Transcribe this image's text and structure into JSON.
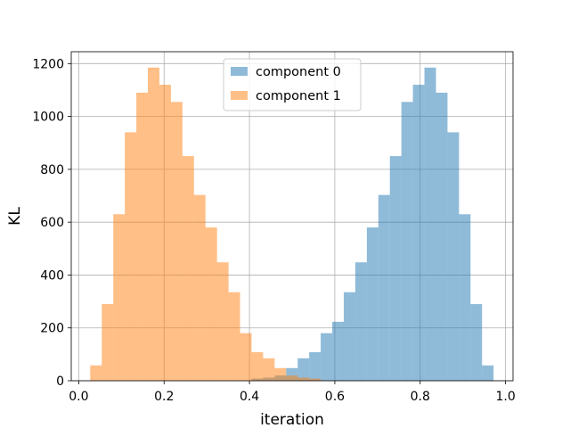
{
  "chart_data": {
    "type": "bar",
    "xlabel": "iteration",
    "ylabel": "KL",
    "xlim": [
      -0.0175,
      1.0175
    ],
    "ylim": [
      0,
      1245
    ],
    "xticks": [
      0.0,
      0.2,
      0.4,
      0.6,
      0.8,
      1.0
    ],
    "xtick_labels": [
      "0.0",
      "0.2",
      "0.4",
      "0.6",
      "0.8",
      "1.0"
    ],
    "yticks": [
      0,
      200,
      400,
      600,
      800,
      1000,
      1200
    ],
    "ytick_labels": [
      "0",
      "200",
      "400",
      "600",
      "800",
      "1000",
      "1200"
    ],
    "grid": true,
    "legend_position": "top-center",
    "series": [
      {
        "name": "component 0",
        "color": "#1f77b4",
        "opacity": 0.5,
        "bins": [
          [
            0.405,
            0.432,
            8
          ],
          [
            0.432,
            0.459,
            12
          ],
          [
            0.459,
            0.486,
            20
          ],
          [
            0.486,
            0.513,
            48
          ],
          [
            0.513,
            0.54,
            85
          ],
          [
            0.54,
            0.567,
            108
          ],
          [
            0.567,
            0.594,
            180
          ],
          [
            0.594,
            0.621,
            223
          ],
          [
            0.621,
            0.648,
            335
          ],
          [
            0.648,
            0.675,
            448
          ],
          [
            0.675,
            0.702,
            580
          ],
          [
            0.702,
            0.729,
            703
          ],
          [
            0.729,
            0.756,
            850
          ],
          [
            0.756,
            0.783,
            1055
          ],
          [
            0.783,
            0.81,
            1120
          ],
          [
            0.81,
            0.837,
            1185
          ],
          [
            0.837,
            0.864,
            1090
          ],
          [
            0.864,
            0.891,
            940
          ],
          [
            0.891,
            0.918,
            630
          ],
          [
            0.918,
            0.945,
            290
          ],
          [
            0.945,
            0.972,
            58
          ]
        ]
      },
      {
        "name": "component 1",
        "color": "#ff7f0e",
        "opacity": 0.5,
        "bins": [
          [
            0.027,
            0.054,
            58
          ],
          [
            0.054,
            0.081,
            290
          ],
          [
            0.081,
            0.108,
            630
          ],
          [
            0.108,
            0.135,
            940
          ],
          [
            0.135,
            0.162,
            1090
          ],
          [
            0.162,
            0.189,
            1185
          ],
          [
            0.189,
            0.216,
            1120
          ],
          [
            0.216,
            0.243,
            1055
          ],
          [
            0.243,
            0.27,
            850
          ],
          [
            0.27,
            0.297,
            703
          ],
          [
            0.297,
            0.324,
            580
          ],
          [
            0.324,
            0.351,
            448
          ],
          [
            0.351,
            0.378,
            335
          ],
          [
            0.378,
            0.405,
            180
          ],
          [
            0.405,
            0.432,
            108
          ],
          [
            0.432,
            0.459,
            85
          ],
          [
            0.459,
            0.486,
            48
          ],
          [
            0.486,
            0.513,
            20
          ],
          [
            0.513,
            0.54,
            12
          ],
          [
            0.54,
            0.567,
            8
          ]
        ]
      }
    ]
  }
}
